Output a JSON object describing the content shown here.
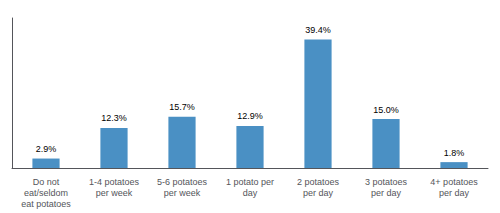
{
  "chart_data": {
    "type": "bar",
    "categories": [
      "Do not\neat/seldom\neat potatoes",
      "1-4 potatoes\nper week",
      "5-6 potatoes\nper week",
      "1 potato per\nday",
      "2 potatoes\nper day",
      "3 potatoes\nper day",
      "4+ potatoes\nper day"
    ],
    "values": [
      2.9,
      12.3,
      15.7,
      12.9,
      39.4,
      15.0,
      1.8
    ],
    "value_labels": [
      "2.9%",
      "12.3%",
      "15.7%",
      "12.9%",
      "39.4%",
      "15.0%",
      "1.8%"
    ],
    "color": "#4A90C4",
    "ylim": [
      0,
      46
    ],
    "grid": false,
    "data_labels": true,
    "tick_labels": "x"
  }
}
